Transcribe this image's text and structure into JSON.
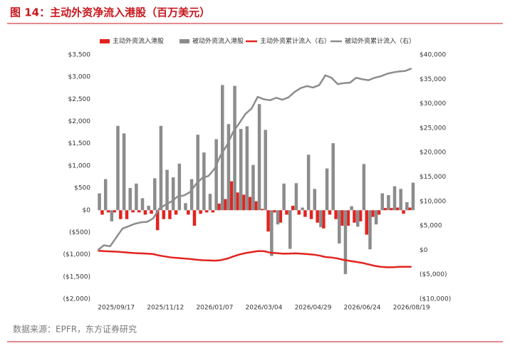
{
  "chart_data": {
    "type": "bar",
    "title": "图 14：主动外资净流入港股（百万美元）",
    "source": "数据来源：EPFR，东方证券研究",
    "categories": [
      null,
      null,
      null,
      "2025/09/17",
      null,
      null,
      null,
      null,
      null,
      null,
      null,
      "2025/11/12",
      null,
      null,
      null,
      null,
      null,
      null,
      null,
      "2026/01/07",
      null,
      null,
      null,
      null,
      null,
      null,
      null,
      "2026/03/04",
      null,
      null,
      null,
      null,
      null,
      null,
      null,
      "2026/04/29",
      null,
      null,
      null,
      null,
      null,
      null,
      null,
      "2026/06/24",
      null,
      null,
      null,
      null,
      null,
      null,
      null,
      "2026/08/19"
    ],
    "series": [
      {
        "name": "主动外资流入港股",
        "type": "bar",
        "color": "#e3231f",
        "values": [
          0,
          -100,
          -50,
          -50,
          -200,
          -200,
          -50,
          -50,
          -100,
          -80,
          -450,
          -200,
          -200,
          -100,
          0,
          -100,
          -350,
          -80,
          -50,
          -50,
          150,
          250,
          650,
          400,
          350,
          300,
          200,
          30,
          -480,
          -50,
          -280,
          -100,
          100,
          -100,
          -150,
          -200,
          -280,
          -410,
          -100,
          -200,
          -350,
          -350,
          -280,
          -250,
          -550,
          -150,
          -100,
          50,
          50,
          60,
          -80,
          60
        ]
      },
      {
        "name": "被动外资流入港股",
        "type": "bar",
        "color": "#8c8c8c",
        "values": [
          380,
          700,
          -250,
          1900,
          1730,
          500,
          600,
          270,
          100,
          720,
          1900,
          910,
          740,
          1050,
          160,
          700,
          1700,
          1300,
          370,
          1600,
          2820,
          1940,
          2800,
          1830,
          1890,
          1020,
          2390,
          1810,
          -1030,
          -320,
          600,
          -870,
          610,
          60,
          1250,
          480,
          -380,
          940,
          1510,
          -750,
          -1440,
          90,
          -370,
          1040,
          -880,
          -320,
          380,
          340,
          540,
          480,
          180,
          620
        ]
      },
      {
        "name": "主动外资累计流入（右）",
        "type": "line",
        "axis": "y2",
        "color": "#e3231f",
        "values": [
          -100,
          -200,
          -250,
          -300,
          -400,
          -500,
          -600,
          -650,
          -700,
          -800,
          -1100,
          -1300,
          -1500,
          -1600,
          -1700,
          -1800,
          -1950,
          -2050,
          -2100,
          -2150,
          -2050,
          -1750,
          -1300,
          -900,
          -600,
          -400,
          -200,
          -200,
          -500,
          -600,
          -700,
          -700,
          -650,
          -700,
          -800,
          -900,
          -1100,
          -1400,
          -1500,
          -1700,
          -2000,
          -2200,
          -2400,
          -2600,
          -2900,
          -3200,
          -3400,
          -3500,
          -3500,
          -3400,
          -3400,
          -3400
        ]
      },
      {
        "name": "被动外资累计流入（右）",
        "type": "line",
        "axis": "y2",
        "color": "#8c8c8c",
        "values": [
          0,
          1000,
          800,
          2600,
          4400,
          4900,
          5400,
          5700,
          5800,
          6500,
          8500,
          9300,
          10000,
          11000,
          11200,
          11900,
          13600,
          14800,
          15200,
          16700,
          19500,
          21500,
          24200,
          26000,
          27900,
          29000,
          31400,
          30900,
          30700,
          31200,
          30800,
          31300,
          32400,
          33200,
          33600,
          33300,
          33800,
          35800,
          35300,
          34000,
          34200,
          34300,
          35300,
          35000,
          34800,
          35300,
          35600,
          36100,
          36400,
          36600,
          36700,
          37200
        ]
      }
    ],
    "ylim": [
      -2000,
      3500
    ],
    "yticks": [
      {
        "value": -2000,
        "label": "($2,000)"
      },
      {
        "value": -1500,
        "label": "($1,500)"
      },
      {
        "value": -1000,
        "label": "($1,000)"
      },
      {
        "value": -500,
        "label": "($500)"
      },
      {
        "value": 0,
        "label": "$0"
      },
      {
        "value": 500,
        "label": "$500"
      },
      {
        "value": 1000,
        "label": "$1,000"
      },
      {
        "value": 1500,
        "label": "$1,500"
      },
      {
        "value": 2000,
        "label": "$2,000"
      },
      {
        "value": 2500,
        "label": "$2,500"
      },
      {
        "value": 3000,
        "label": "$3,000"
      },
      {
        "value": 3500,
        "label": "$3,500"
      }
    ],
    "y2lim": [
      -10000,
      40000
    ],
    "y2ticks": [
      {
        "value": -10000,
        "label": "($10,000)"
      },
      {
        "value": -5000,
        "label": "($5,000)"
      },
      {
        "value": 0,
        "label": "$0"
      },
      {
        "value": 5000,
        "label": "$5,000"
      },
      {
        "value": 10000,
        "label": "$10,000"
      },
      {
        "value": 15000,
        "label": "$15,000"
      },
      {
        "value": 20000,
        "label": "$20,000"
      },
      {
        "value": 25000,
        "label": "$25,000"
      },
      {
        "value": 30000,
        "label": "$30,000"
      },
      {
        "value": 35000,
        "label": "$35,000"
      },
      {
        "value": 40000,
        "label": "$40,000"
      }
    ],
    "grid": false
  }
}
